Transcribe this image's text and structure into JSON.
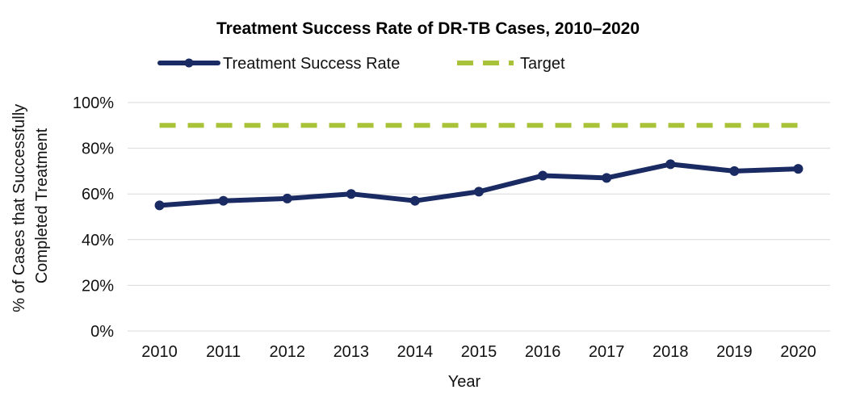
{
  "chart_data": {
    "type": "line",
    "title": "Treatment Success Rate of DR-TB Cases, 2010–2020",
    "xlabel": "Year",
    "ylabel_lines": [
      "% of Cases that Successfully",
      "Completed  Treatment"
    ],
    "x": [
      "2010",
      "2011",
      "2012",
      "2013",
      "2014",
      "2015",
      "2016",
      "2017",
      "2018",
      "2019",
      "2020"
    ],
    "ylim": [
      0,
      100
    ],
    "y_ticks": [
      0,
      20,
      40,
      60,
      80,
      100
    ],
    "y_tick_labels": [
      "0%",
      "20%",
      "40%",
      "60%",
      "80%",
      "100%"
    ],
    "grid": true,
    "legend_position": "top",
    "series": [
      {
        "name": "Treatment Success Rate",
        "values": [
          55,
          57,
          58,
          60,
          57,
          61,
          68,
          67,
          73,
          70,
          71
        ],
        "color": "#1a2a63",
        "style": "solid-markers"
      },
      {
        "name": "Target",
        "values": [
          90,
          90,
          90,
          90,
          90,
          90,
          90,
          90,
          90,
          90,
          90
        ],
        "color": "#a8c23a",
        "style": "dashed"
      }
    ]
  }
}
